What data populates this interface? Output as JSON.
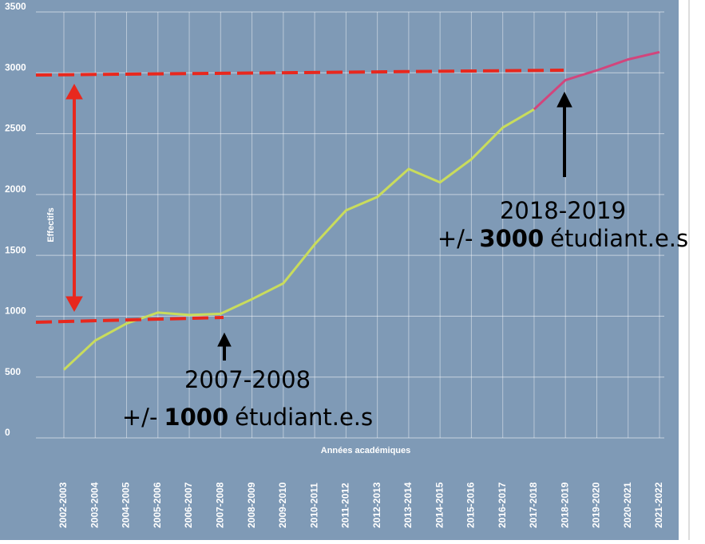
{
  "chart_data": {
    "type": "line",
    "y_label": "Effectifs",
    "x_label": "Années académiques",
    "categories": [
      "2002-2003",
      "2003-2004",
      "2004-2005",
      "2005-2006",
      "2006-2007",
      "2007-2008",
      "2008-2009",
      "2009-2010",
      "2010-2011",
      "2011-2012",
      "2012-2013",
      "2013-2014",
      "2014-2015",
      "2015-2016",
      "2016-2017",
      "2017-2018",
      "2018-2019",
      "2019-2020",
      "2020-2021",
      "2021-2022"
    ],
    "series": [
      {
        "color": "#c9dc5c",
        "values": [
          560,
          800,
          940,
          1030,
          1010,
          1020,
          1140,
          1270,
          1590,
          1870,
          1980,
          2210,
          2100,
          2290,
          2550,
          2700,
          null,
          null,
          null,
          null
        ]
      },
      {
        "color": "#d2457c",
        "values": [
          null,
          null,
          null,
          null,
          null,
          null,
          null,
          null,
          null,
          null,
          null,
          null,
          null,
          null,
          null,
          2700,
          2940,
          3020,
          3110,
          3170
        ]
      }
    ],
    "ylim": [
      0,
      3500
    ],
    "yticks": [
      0,
      500,
      1000,
      1500,
      2000,
      2500,
      3000,
      3500
    ],
    "grid": true,
    "annotations": [
      {
        "title": "2007-2008",
        "prefix": "+/-",
        "bold": "1000",
        "suffix": "étudiant.e.s"
      },
      {
        "title": "2018-2019",
        "prefix": "+/-",
        "bold": "3000",
        "suffix": "étudiant.e.s"
      }
    ]
  }
}
